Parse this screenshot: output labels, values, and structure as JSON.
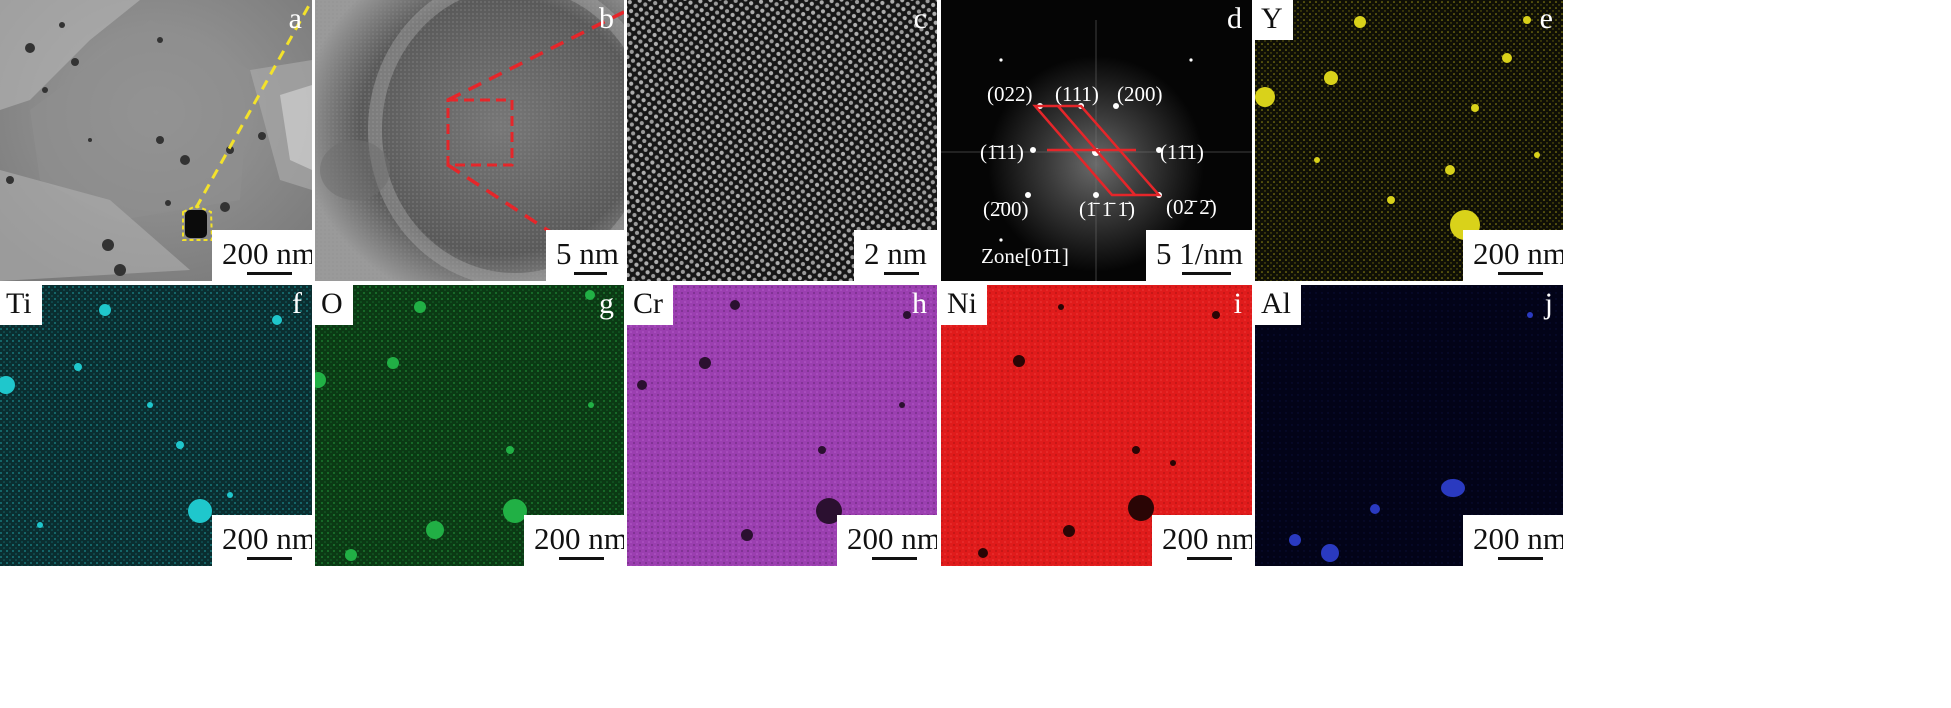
{
  "panels": {
    "a": {
      "letter": "a",
      "scale": "200 nm"
    },
    "b": {
      "letter": "b",
      "scale": "5 nm"
    },
    "c": {
      "letter": "c",
      "scale": "2 nm"
    },
    "d": {
      "letter": "d",
      "scale": "5 1/nm",
      "zone": "Zone[01̄1]",
      "spots": [
        "(022)",
        "(111)",
        "(200)",
        "(1̄11)",
        "(11̄1)",
        "(2̄00)",
        "(1̄ 1̄ 1̄)",
        "(02̄ 2̄)"
      ]
    },
    "e": {
      "letter": "e",
      "element": "Y",
      "scale": "200 nm"
    },
    "f": {
      "letter": "f",
      "element": "Ti",
      "scale": "200 nm"
    },
    "g": {
      "letter": "g",
      "element": "O",
      "scale": "200 nm"
    },
    "h": {
      "letter": "h",
      "element": "Cr",
      "scale": "200 nm"
    },
    "i": {
      "letter": "i",
      "element": "Ni",
      "scale": "200 nm"
    },
    "j": {
      "letter": "j",
      "element": "Al",
      "scale": "200 nm"
    }
  },
  "colors": {
    "Y": "#d9d21a",
    "Ti": "#1fc7cc",
    "O": "#21b045",
    "Cr": "#9b3fb0",
    "Ni": "#e01b1b",
    "Al": "#2a3ac0",
    "outline_yellow": "#f3e22b",
    "outline_red": "#e5262a"
  }
}
